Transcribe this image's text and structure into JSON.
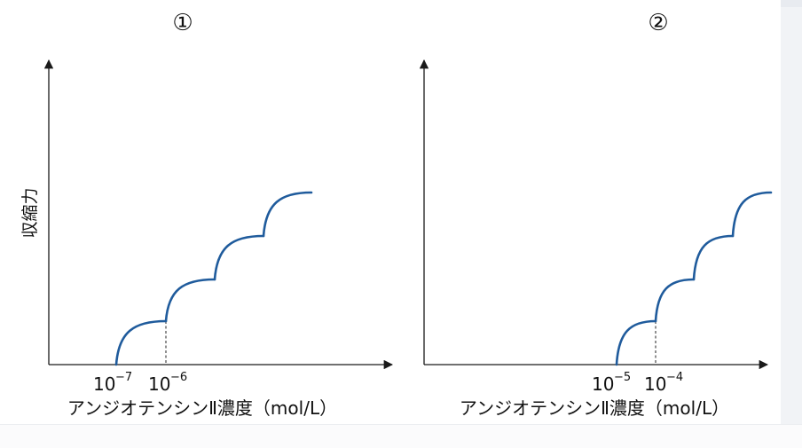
{
  "chart_data": [
    {
      "type": "line",
      "title": "①",
      "xlabel": "アンジオテンシンⅡ濃度（mol/L）",
      "ylabel": "収縮力",
      "ticks": [
        {
          "base": "10",
          "exp": "−7"
        },
        {
          "base": "10",
          "exp": "−6"
        }
      ],
      "marked_concentration_index": 1,
      "steps": 4,
      "curve_color": "#1f5b9c",
      "axis_color": "#1a1a1a"
    },
    {
      "type": "line",
      "title": "②",
      "xlabel": "アンジオテンシンⅡ濃度（mol/L）",
      "ylabel": "",
      "ticks": [
        {
          "base": "10",
          "exp": "−5"
        },
        {
          "base": "10",
          "exp": "−4"
        }
      ],
      "marked_concentration_index": 1,
      "steps": 4,
      "curve_color": "#1f5b9c",
      "axis_color": "#1a1a1a"
    }
  ]
}
